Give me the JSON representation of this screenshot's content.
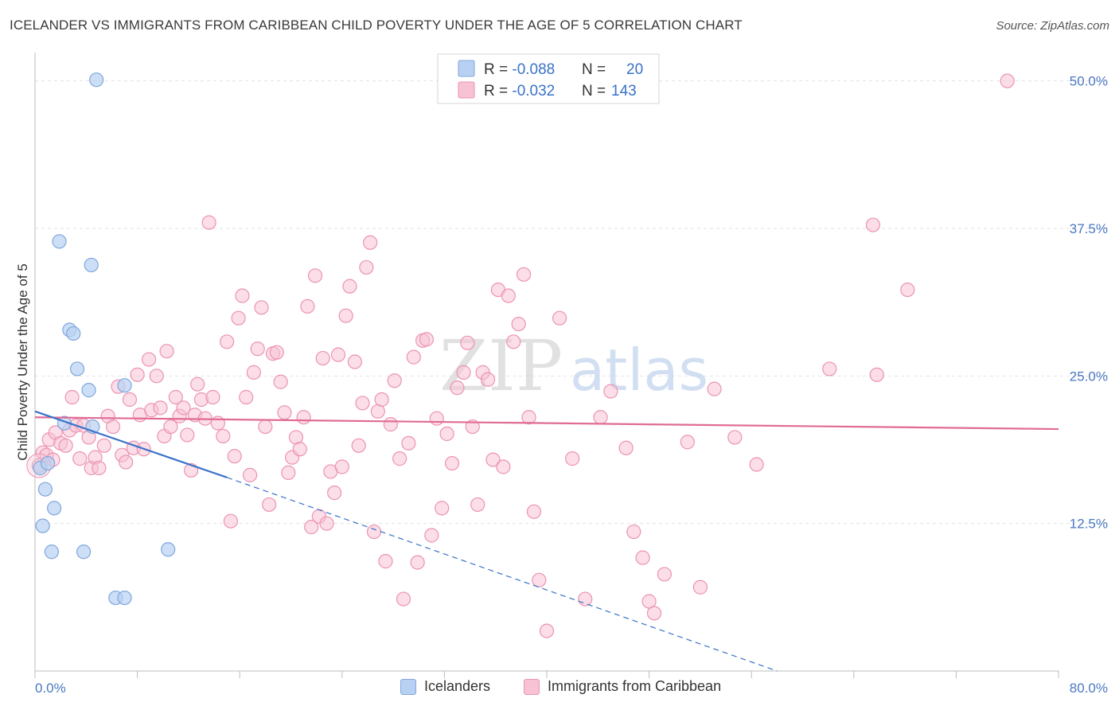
{
  "chart_data": {
    "type": "scatter",
    "title": "ICELANDER VS IMMIGRANTS FROM CARIBBEAN CHILD POVERTY UNDER THE AGE OF 5 CORRELATION CHART",
    "source": "Source: ZipAtlas.com",
    "ylabel": "Child Poverty Under the Age of 5",
    "xlabel": "",
    "xlim": [
      0,
      80
    ],
    "ylim": [
      0,
      52
    ],
    "x_tick_labels": {
      "left": "0.0%",
      "right": "80.0%"
    },
    "y_ticks": [
      {
        "value": 12.5,
        "label": "12.5%"
      },
      {
        "value": 25.0,
        "label": "25.0%"
      },
      {
        "value": 37.5,
        "label": "37.5%"
      },
      {
        "value": 50.0,
        "label": "50.0%"
      }
    ],
    "watermark": {
      "zip": "ZIP",
      "atlas": "atlas"
    },
    "legend": [
      {
        "r_label": "R = ",
        "r_value": "-0.088",
        "n_label": "N = ",
        "n_value": "20"
      },
      {
        "r_label": "R = ",
        "r_value": "-0.032",
        "n_label": "N = ",
        "n_value": "143"
      }
    ],
    "colors": {
      "icelanders_fill": "#b8d1f2",
      "icelanders_stroke": "#7fa6dc",
      "icelanders_line": "#3a72c8",
      "caribbean_fill": "#f7c2d3",
      "caribbean_stroke": "#ec93b2",
      "caribbean_line": "#e06b95",
      "tick_text": "#4a78c2",
      "grid": "#e2e2e2"
    },
    "series": [
      {
        "name": "Icelanders",
        "trend": {
          "x0": 0,
          "y0": 22.0,
          "x1": 15.0,
          "y1": 16.4,
          "dash_to_x": 58.0,
          "dash_to_y": 0.0
        },
        "points": [
          [
            0.4,
            17.2
          ],
          [
            1.0,
            17.6
          ],
          [
            0.8,
            15.4
          ],
          [
            1.5,
            13.8
          ],
          [
            0.6,
            12.3
          ],
          [
            1.3,
            10.1
          ],
          [
            3.8,
            10.1
          ],
          [
            2.3,
            21.0
          ],
          [
            4.5,
            20.7
          ],
          [
            3.3,
            25.6
          ],
          [
            4.2,
            23.8
          ],
          [
            7.0,
            24.2
          ],
          [
            2.7,
            28.9
          ],
          [
            3.0,
            28.6
          ],
          [
            1.9,
            36.4
          ],
          [
            4.4,
            34.4
          ],
          [
            4.8,
            50.1
          ],
          [
            6.3,
            6.2
          ],
          [
            7.0,
            6.2
          ],
          [
            10.4,
            10.3
          ]
        ]
      },
      {
        "name": "Immigrants from Caribbean",
        "trend": {
          "x0": 0,
          "y0": 21.5,
          "x1": 80,
          "y1": 20.5
        },
        "points": [
          [
            0.3,
            17.4
          ],
          [
            0.6,
            18.5
          ],
          [
            0.9,
            18.3
          ],
          [
            1.1,
            19.6
          ],
          [
            1.4,
            17.9
          ],
          [
            1.6,
            20.2
          ],
          [
            2.0,
            19.3
          ],
          [
            2.4,
            19.1
          ],
          [
            2.7,
            20.4
          ],
          [
            2.9,
            23.2
          ],
          [
            3.2,
            20.8
          ],
          [
            3.5,
            18.0
          ],
          [
            3.8,
            20.8
          ],
          [
            4.2,
            19.8
          ],
          [
            4.4,
            17.2
          ],
          [
            4.7,
            18.1
          ],
          [
            5.0,
            17.2
          ],
          [
            5.4,
            19.1
          ],
          [
            5.7,
            21.6
          ],
          [
            6.1,
            20.7
          ],
          [
            6.5,
            24.1
          ],
          [
            6.8,
            18.3
          ],
          [
            7.1,
            17.7
          ],
          [
            7.4,
            23.0
          ],
          [
            7.7,
            18.9
          ],
          [
            8.0,
            25.1
          ],
          [
            8.2,
            21.7
          ],
          [
            8.5,
            18.8
          ],
          [
            8.9,
            26.4
          ],
          [
            9.1,
            22.1
          ],
          [
            9.5,
            25.0
          ],
          [
            9.8,
            22.3
          ],
          [
            10.1,
            19.9
          ],
          [
            10.3,
            27.1
          ],
          [
            10.6,
            20.7
          ],
          [
            11.0,
            23.2
          ],
          [
            11.3,
            21.6
          ],
          [
            11.6,
            22.3
          ],
          [
            11.9,
            20.0
          ],
          [
            12.2,
            17.0
          ],
          [
            12.5,
            21.7
          ],
          [
            12.7,
            24.3
          ],
          [
            13.0,
            23.0
          ],
          [
            13.3,
            21.4
          ],
          [
            13.6,
            38.0
          ],
          [
            13.9,
            23.2
          ],
          [
            14.3,
            21.0
          ],
          [
            14.7,
            19.9
          ],
          [
            15.0,
            27.9
          ],
          [
            15.3,
            12.7
          ],
          [
            15.6,
            18.2
          ],
          [
            15.9,
            29.9
          ],
          [
            16.2,
            31.8
          ],
          [
            16.5,
            23.2
          ],
          [
            16.8,
            16.6
          ],
          [
            17.1,
            25.3
          ],
          [
            17.4,
            27.3
          ],
          [
            17.7,
            30.8
          ],
          [
            18.0,
            20.7
          ],
          [
            18.3,
            14.1
          ],
          [
            18.6,
            26.9
          ],
          [
            18.9,
            27.0
          ],
          [
            19.2,
            24.5
          ],
          [
            19.5,
            21.9
          ],
          [
            19.8,
            16.8
          ],
          [
            20.1,
            18.1
          ],
          [
            20.4,
            19.8
          ],
          [
            20.7,
            18.8
          ],
          [
            21.0,
            21.5
          ],
          [
            21.3,
            30.9
          ],
          [
            21.6,
            12.2
          ],
          [
            21.9,
            33.5
          ],
          [
            22.2,
            13.1
          ],
          [
            22.5,
            26.5
          ],
          [
            22.8,
            12.5
          ],
          [
            23.1,
            16.9
          ],
          [
            23.4,
            15.1
          ],
          [
            23.7,
            26.8
          ],
          [
            24.0,
            17.3
          ],
          [
            24.3,
            30.1
          ],
          [
            24.6,
            32.6
          ],
          [
            25.0,
            26.2
          ],
          [
            25.3,
            19.1
          ],
          [
            25.6,
            22.7
          ],
          [
            25.9,
            34.2
          ],
          [
            26.2,
            36.3
          ],
          [
            26.5,
            11.8
          ],
          [
            26.8,
            22.0
          ],
          [
            27.1,
            23.0
          ],
          [
            27.4,
            9.3
          ],
          [
            27.8,
            20.9
          ],
          [
            28.1,
            24.6
          ],
          [
            28.5,
            18.0
          ],
          [
            28.8,
            6.1
          ],
          [
            29.2,
            19.3
          ],
          [
            29.6,
            26.6
          ],
          [
            29.9,
            9.2
          ],
          [
            30.3,
            28.0
          ],
          [
            30.6,
            28.1
          ],
          [
            31.0,
            11.5
          ],
          [
            31.4,
            21.4
          ],
          [
            31.8,
            13.8
          ],
          [
            32.2,
            20.1
          ],
          [
            32.6,
            17.6
          ],
          [
            33.0,
            24.0
          ],
          [
            33.5,
            25.3
          ],
          [
            33.8,
            27.8
          ],
          [
            34.2,
            20.7
          ],
          [
            34.6,
            14.1
          ],
          [
            35.0,
            25.3
          ],
          [
            35.4,
            24.7
          ],
          [
            35.8,
            17.9
          ],
          [
            36.2,
            32.3
          ],
          [
            36.6,
            17.3
          ],
          [
            37.0,
            31.8
          ],
          [
            37.4,
            27.9
          ],
          [
            37.8,
            29.4
          ],
          [
            38.2,
            33.6
          ],
          [
            38.6,
            21.5
          ],
          [
            39.0,
            13.5
          ],
          [
            39.4,
            7.7
          ],
          [
            40.0,
            3.4
          ],
          [
            41.0,
            29.9
          ],
          [
            42.0,
            18.0
          ],
          [
            43.0,
            6.1
          ],
          [
            44.2,
            21.5
          ],
          [
            45.0,
            23.7
          ],
          [
            46.2,
            18.9
          ],
          [
            46.8,
            11.8
          ],
          [
            47.5,
            9.6
          ],
          [
            48.0,
            5.9
          ],
          [
            48.4,
            4.9
          ],
          [
            49.2,
            8.2
          ],
          [
            51.0,
            19.4
          ],
          [
            52.0,
            7.1
          ],
          [
            53.1,
            23.9
          ],
          [
            54.7,
            19.8
          ],
          [
            56.4,
            17.5
          ],
          [
            62.1,
            25.6
          ],
          [
            65.5,
            37.8
          ],
          [
            65.8,
            25.1
          ],
          [
            68.2,
            32.3
          ],
          [
            76.0,
            50.0
          ]
        ]
      }
    ]
  }
}
